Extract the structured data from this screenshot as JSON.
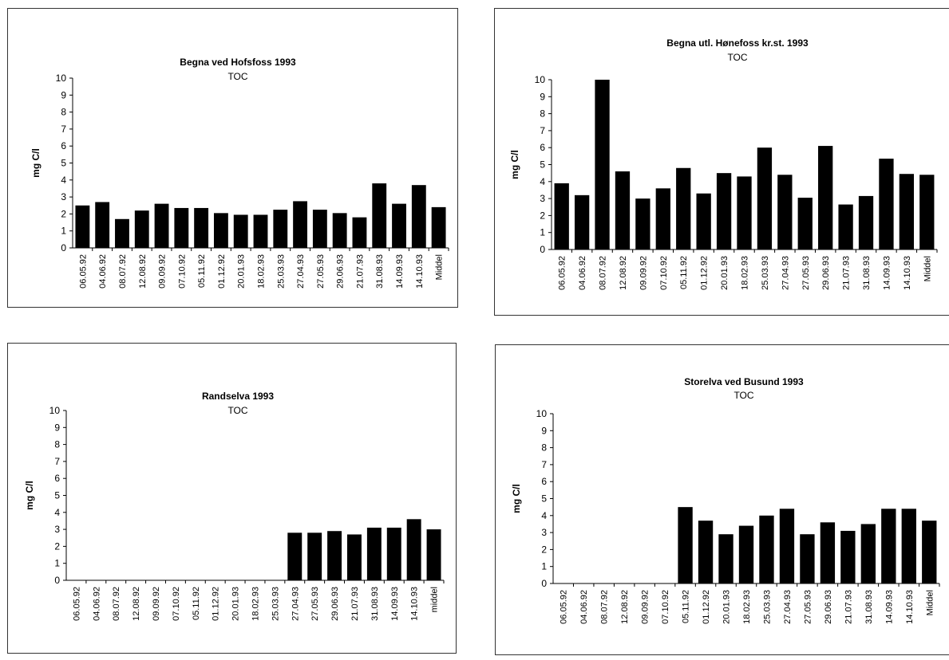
{
  "chart_data": [
    {
      "type": "bar",
      "title": "Begna ved Hofsfoss 1993",
      "subtitle": "TOC",
      "ylabel": "mg C/l",
      "xlabel": "",
      "ylim": [
        0,
        10
      ],
      "yticks": [
        "0",
        "1",
        "2",
        "3",
        "4",
        "5",
        "6",
        "7",
        "8",
        "9",
        "10"
      ],
      "categories": [
        "06.05.92",
        "04.06.92",
        "08.07.92",
        "12.08.92",
        "09.09.92",
        "07.10.92",
        "05.11.92",
        "01.12.92",
        "20.01.93",
        "18.02.93",
        "25.03.93",
        "27.04.93",
        "27.05.93",
        "29.06.93",
        "21.07.93",
        "31.08.93",
        "14.09.93",
        "14.10.93",
        "Middel"
      ],
      "values": [
        2.5,
        2.7,
        1.7,
        2.2,
        2.6,
        2.35,
        2.35,
        2.05,
        1.95,
        1.95,
        2.25,
        2.75,
        2.25,
        2.05,
        1.8,
        3.8,
        2.6,
        3.7,
        2.4
      ],
      "bar_color": "#000000"
    },
    {
      "type": "bar",
      "title": "Begna utl. Hønefoss kr.st. 1993",
      "subtitle": "TOC",
      "ylabel": "mg C/l",
      "xlabel": "",
      "ylim": [
        0,
        10
      ],
      "yticks": [
        "0",
        "1",
        "2",
        "3",
        "4",
        "5",
        "6",
        "7",
        "8",
        "9",
        "10"
      ],
      "categories": [
        "06.05.92",
        "04.06.92",
        "08.07.92",
        "12.08.92",
        "09.09.92",
        "07.10.92",
        "05.11.92",
        "01.12.92",
        "20.01.93",
        "18.02.93",
        "25.03.93",
        "27.04.93",
        "27.05.93",
        "29.06.93",
        "21.07.93",
        "31.08.93",
        "14.09.93",
        "14.10.93",
        "Middel"
      ],
      "values": [
        3.9,
        3.2,
        10.0,
        4.6,
        3.0,
        3.6,
        4.8,
        3.3,
        4.5,
        4.3,
        6.0,
        4.4,
        3.05,
        6.1,
        2.65,
        3.15,
        5.35,
        4.45,
        4.4
      ],
      "bar_color": "#000000"
    },
    {
      "type": "bar",
      "title": "Randselva 1993",
      "subtitle": "TOC",
      "ylabel": "mg C/l",
      "xlabel": "",
      "ylim": [
        0,
        10
      ],
      "yticks": [
        "0",
        "1",
        "2",
        "3",
        "4",
        "5",
        "6",
        "7",
        "8",
        "9",
        "10"
      ],
      "categories": [
        "06.05.92",
        "04.06.92",
        "08.07.92",
        "12.08.92",
        "09.09.92",
        "07.10.92",
        "05.11.92",
        "01.12.92",
        "20.01.93",
        "18.02.93",
        "25.03.93",
        "27.04.93",
        "27.05.93",
        "29.06.93",
        "21.07.93",
        "31.08.93",
        "14.09.93",
        "14.10.93",
        "middel"
      ],
      "values": [
        0,
        0,
        0,
        0,
        0,
        0,
        0,
        0,
        0,
        0,
        0,
        2.8,
        2.8,
        2.9,
        2.7,
        3.1,
        3.1,
        3.6,
        3.0
      ],
      "bar_color": "#000000"
    },
    {
      "type": "bar",
      "title": "Storelva ved Busund 1993",
      "subtitle": "TOC",
      "ylabel": "mg C/l",
      "xlabel": "",
      "ylim": [
        0,
        10
      ],
      "yticks": [
        "0",
        "1",
        "2",
        "3",
        "4",
        "5",
        "6",
        "7",
        "8",
        "9",
        "10"
      ],
      "categories": [
        "06.05.92",
        "04.06.92",
        "08.07.92",
        "12.08.92",
        "09.09.92",
        "07.10.92",
        "05.11.92",
        "01.12.92",
        "20.01.93",
        "18.02.93",
        "25.03.93",
        "27.04.93",
        "27.05.93",
        "29.06.93",
        "21.07.93",
        "31.08.93",
        "14.09.93",
        "14.10.93",
        "Middel"
      ],
      "values": [
        0,
        0,
        0,
        0,
        0,
        0,
        4.5,
        3.7,
        2.9,
        3.4,
        4.0,
        4.4,
        2.9,
        3.6,
        3.1,
        3.5,
        4.4,
        4.4,
        3.7
      ],
      "bar_color": "#000000"
    }
  ]
}
